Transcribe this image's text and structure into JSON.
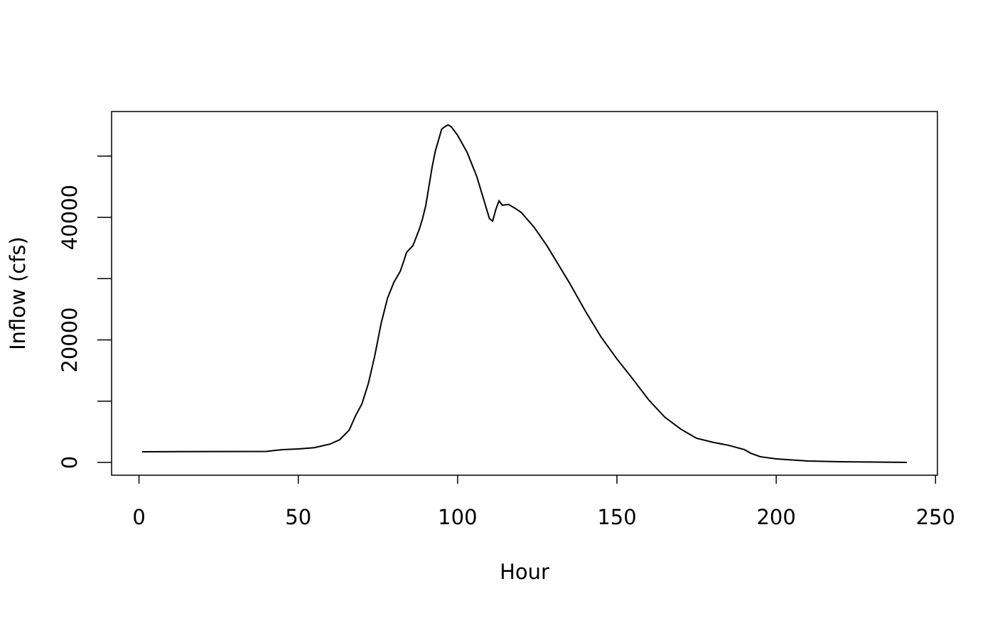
{
  "chart_data": {
    "type": "line",
    "x_label": "Hour",
    "y_label": "Inflow (cfs)",
    "x": [
      1,
      40,
      45,
      50,
      55,
      60,
      63,
      66,
      68,
      70,
      72,
      74,
      76,
      78,
      80,
      82,
      83,
      84,
      86,
      88,
      89,
      90,
      92,
      93,
      95,
      96,
      97,
      98,
      100,
      103,
      106,
      110,
      111,
      112,
      113,
      114,
      116,
      118,
      120,
      124,
      128,
      135,
      140,
      145,
      150,
      155,
      160,
      165,
      170,
      175,
      180,
      185,
      190,
      192,
      195,
      200,
      210,
      220,
      241
    ],
    "values": [
      1740,
      1800,
      2090,
      2200,
      2400,
      3000,
      3700,
      5300,
      7650,
      9600,
      12900,
      17400,
      22700,
      26800,
      29400,
      31200,
      32700,
      34300,
      35400,
      38100,
      39800,
      41900,
      48200,
      50800,
      54400,
      54800,
      55100,
      54800,
      53400,
      50600,
      46700,
      39800,
      39400,
      41300,
      42700,
      42000,
      42100,
      41500,
      40800,
      38400,
      35400,
      29400,
      24800,
      20500,
      16900,
      13600,
      10200,
      7400,
      5450,
      3940,
      3300,
      2800,
      2090,
      1500,
      930,
      580,
      230,
      120,
      0
    ],
    "color": "#000000",
    "xlim": [
      -8.6,
      250.6
    ],
    "xticks": [
      0,
      50,
      100,
      150,
      200,
      250
    ],
    "ylim": [
      -2090,
      57280
    ],
    "yticks": [
      0,
      20000,
      40000
    ],
    "yminor_ticks": [
      10000,
      30000,
      50000
    ]
  }
}
